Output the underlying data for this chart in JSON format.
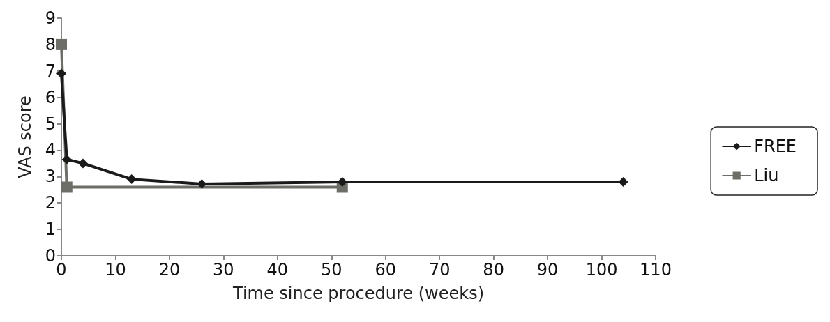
{
  "chart_data": {
    "type": "line",
    "xlabel": "Time since procedure (weeks)",
    "ylabel": "VAS score",
    "xlim": [
      0,
      110
    ],
    "xticks": [
      0,
      10,
      20,
      30,
      40,
      50,
      60,
      70,
      80,
      90,
      100,
      110
    ],
    "ylim": [
      0,
      9
    ],
    "yticks": [
      0,
      1,
      2,
      3,
      4,
      5,
      6,
      7,
      8,
      9
    ],
    "grid": false,
    "legend": "right",
    "line_style": "solid",
    "series": [
      {
        "name": "FREE",
        "color": "#1a1a1a",
        "marker": "diamond",
        "x": [
          0,
          1,
          4,
          13,
          26,
          52,
          104
        ],
        "values": [
          6.9,
          3.65,
          3.5,
          2.9,
          2.72,
          2.8,
          2.8
        ]
      },
      {
        "name": "Liu",
        "color": "#6e6e68",
        "marker": "square",
        "x": [
          0,
          1,
          52
        ],
        "values": [
          8,
          2.6,
          2.6
        ]
      }
    ]
  }
}
